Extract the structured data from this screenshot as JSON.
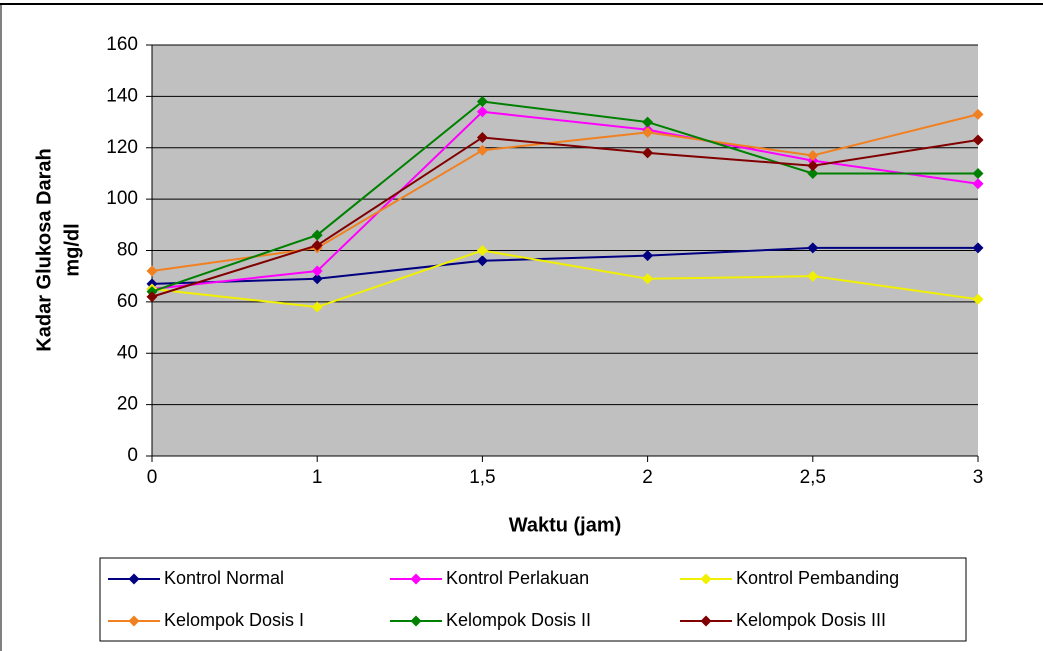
{
  "chart_data": {
    "type": "line",
    "categories": [
      "0",
      "1",
      "1,5",
      "2",
      "2,5",
      "3"
    ],
    "xlabel": "Waktu (jam)",
    "ylabel": [
      "Kadar Glukosa Darah",
      "mg/dl"
    ],
    "ylim": [
      0,
      160
    ],
    "yticks": [
      0,
      20,
      40,
      60,
      80,
      100,
      120,
      140,
      160
    ],
    "grid": true,
    "series": [
      {
        "name": "Kontrol Normal",
        "color": "#000080",
        "values": [
          67,
          69,
          76,
          78,
          81,
          81
        ]
      },
      {
        "name": "Kontrol Perlakuan",
        "color": "#ff00ff",
        "values": [
          65,
          72,
          134,
          127,
          115,
          106
        ]
      },
      {
        "name": "Kontrol Pembanding",
        "color": "#f0f000",
        "values": [
          65,
          58,
          80,
          69,
          70,
          61
        ]
      },
      {
        "name": "Kelompok Dosis I",
        "color": "#f08020",
        "values": [
          72,
          81,
          119,
          126,
          117,
          133
        ]
      },
      {
        "name": "Kelompok Dosis II",
        "color": "#008000",
        "values": [
          64,
          86,
          138,
          130,
          110,
          110
        ]
      },
      {
        "name": "Kelompok Dosis III",
        "color": "#800000",
        "values": [
          62,
          82,
          124,
          118,
          113,
          123
        ]
      }
    ]
  }
}
